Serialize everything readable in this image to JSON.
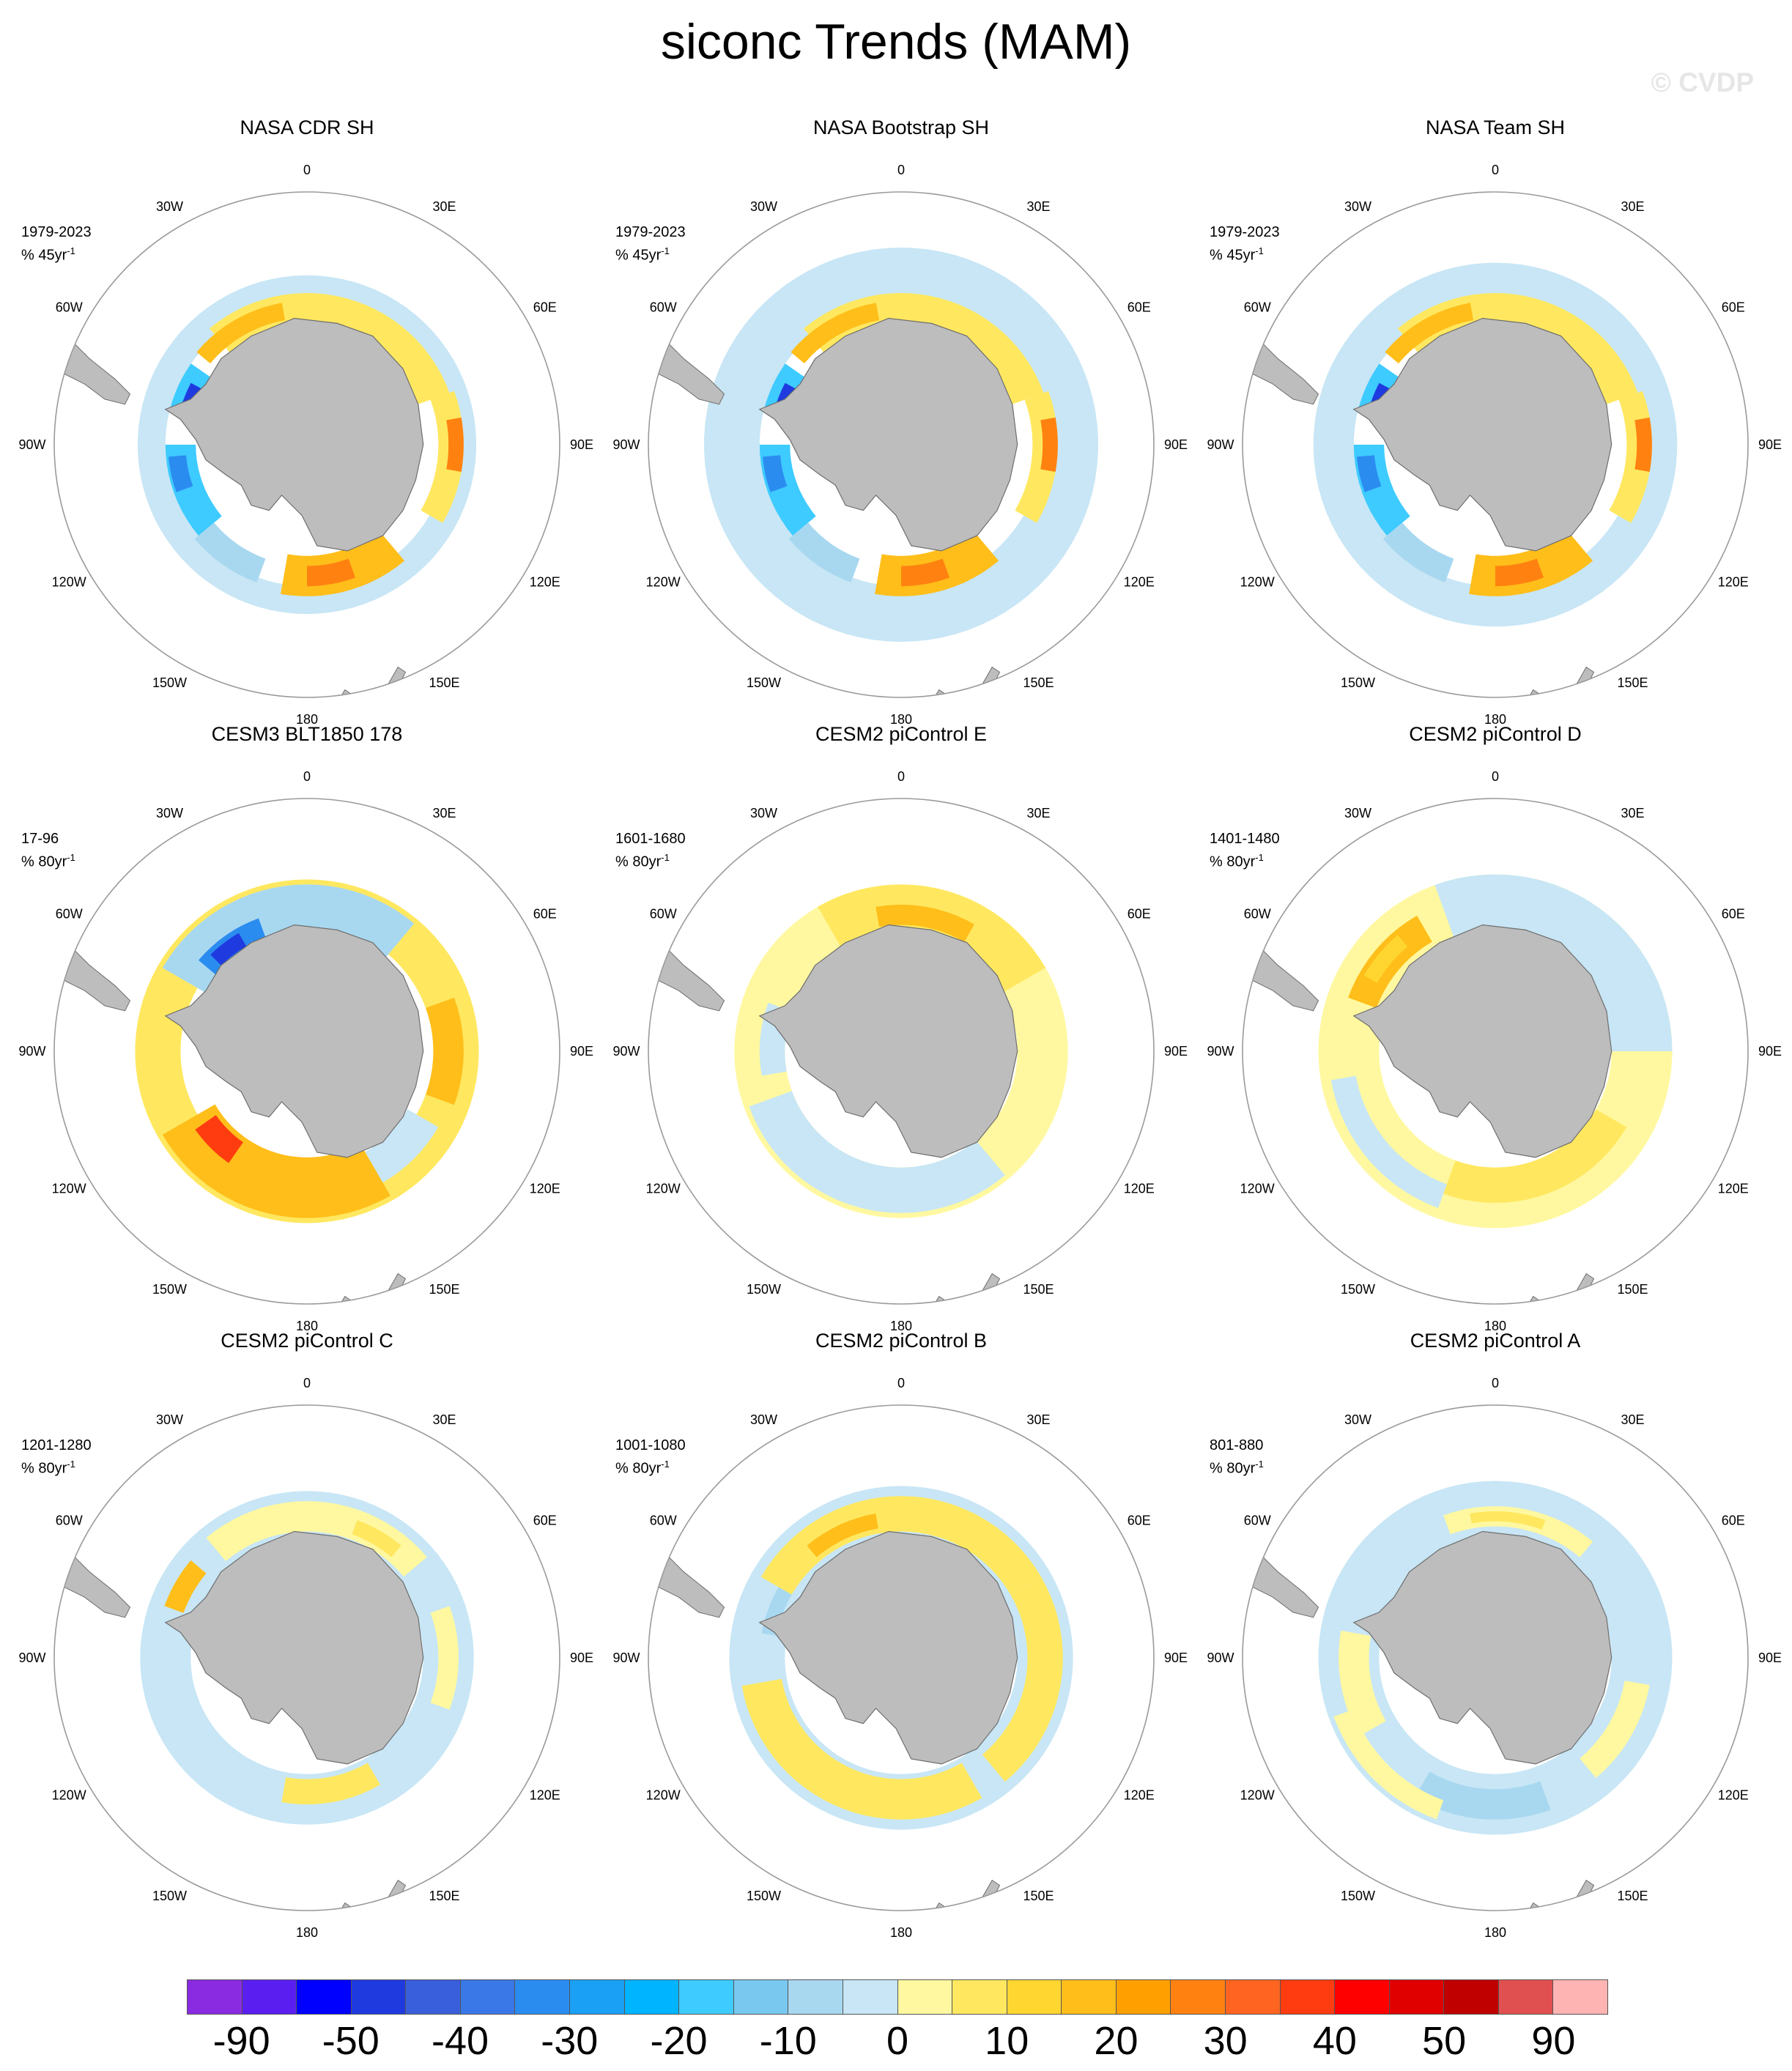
{
  "title": "siconc Trends (MAM)",
  "copyright": "© CVDP",
  "colors": {
    "land": "#bdbdbd",
    "land_edge": "#6e6e6e",
    "circle": "#9a9a9a",
    "missing": "#ffffff"
  },
  "lon_labels": [
    "0",
    "30E",
    "60E",
    "90E",
    "120E",
    "150E",
    "180",
    "150W",
    "120W",
    "90W",
    "60W",
    "30W"
  ],
  "panels": [
    {
      "title": "NASA CDR SH",
      "period": "1979-2023",
      "units_prefix": "% 45yr",
      "units_sup": "-1",
      "pattern": "obs"
    },
    {
      "title": "NASA Bootstrap SH",
      "period": "1979-2023",
      "units_prefix": "% 45yr",
      "units_sup": "-1",
      "pattern": "obs_noisy"
    },
    {
      "title": "NASA Team SH",
      "period": "1979-2023",
      "units_prefix": "% 45yr",
      "units_sup": "-1",
      "pattern": "obs_team"
    },
    {
      "title": "CESM3 BLT1850 178",
      "period": "17-96",
      "units_prefix": "% 80yr",
      "units_sup": "-1",
      "pattern": "cesm3"
    },
    {
      "title": "CESM2 piControl E",
      "period": "1601-1680",
      "units_prefix": "% 80yr",
      "units_sup": "-1",
      "pattern": "ctlE"
    },
    {
      "title": "CESM2 piControl D",
      "period": "1401-1480",
      "units_prefix": "% 80yr",
      "units_sup": "-1",
      "pattern": "ctlD"
    },
    {
      "title": "CESM2 piControl C",
      "period": "1201-1280",
      "units_prefix": "% 80yr",
      "units_sup": "-1",
      "pattern": "ctlC"
    },
    {
      "title": "CESM2 piControl B",
      "period": "1001-1080",
      "units_prefix": "% 80yr",
      "units_sup": "-1",
      "pattern": "ctlB"
    },
    {
      "title": "CESM2 piControl A",
      "period": "801-880",
      "units_prefix": "% 80yr",
      "units_sup": "-1",
      "pattern": "ctlA"
    }
  ],
  "colorbar": {
    "colors": [
      "#8a2be2",
      "#5a1ef0",
      "#0000ff",
      "#1f3be0",
      "#3a5fdc",
      "#3a78e8",
      "#2b8cf0",
      "#1aa0f5",
      "#00b4ff",
      "#3ecbff",
      "#78c8f0",
      "#a8d8f0",
      "#c8e6f5",
      "#fff8a0",
      "#ffe860",
      "#ffd630",
      "#ffbe1a",
      "#ffa000",
      "#ff8210",
      "#ff6420",
      "#ff3c10",
      "#ff0000",
      "#e00000",
      "#c00000",
      "#e05050",
      "#ffb4b4"
    ],
    "labels": [
      "-90",
      "-50",
      "-40",
      "-30",
      "-20",
      "-10",
      "0",
      "10",
      "20",
      "30",
      "40",
      "50",
      "90"
    ]
  }
}
